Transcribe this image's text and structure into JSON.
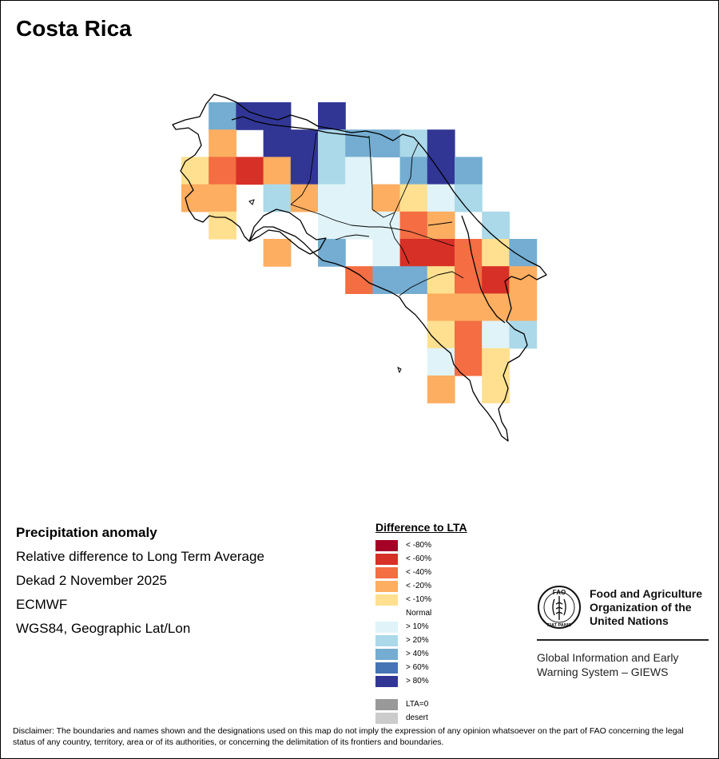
{
  "title": "Costa Rica",
  "info": {
    "heading": "Precipitation anomaly",
    "subtitle": "Relative difference to Long Term Average",
    "period": "Dekad 2 November 2025",
    "source": "ECMWF",
    "projection": "WGS84, Geographic Lat/Lon"
  },
  "legend": {
    "title": "Difference to LTA",
    "items": [
      {
        "label": "< -80%",
        "color": "#a50026"
      },
      {
        "label": "< -60%",
        "color": "#d73027"
      },
      {
        "label": "< -40%",
        "color": "#f46d43"
      },
      {
        "label": "< -20%",
        "color": "#fdae61"
      },
      {
        "label": "< -10%",
        "color": "#fee090"
      },
      {
        "label": "Normal",
        "color": "#ffffff"
      },
      {
        "label": "> 10%",
        "color": "#e0f3f8"
      },
      {
        "label": "> 20%",
        "color": "#abd9e9"
      },
      {
        "label": "> 40%",
        "color": "#74add1"
      },
      {
        "label": "> 60%",
        "color": "#4575b4"
      },
      {
        "label": "> 80%",
        "color": "#313695"
      }
    ],
    "extra": [
      {
        "label": "LTA=0",
        "color": "#999999"
      },
      {
        "label": "desert",
        "color": "#cccccc"
      }
    ]
  },
  "grid": {
    "categories": [
      "< -80%",
      "< -60%",
      "< -40%",
      "< -20%",
      "< -10%",
      "Normal",
      "> 10%",
      "> 20%",
      "> 40%",
      "> 60%",
      "> 80%"
    ],
    "cells": [
      {
        "row": 0,
        "col": 1,
        "class": 8
      },
      {
        "row": 0,
        "col": 2,
        "class": 10
      },
      {
        "row": 0,
        "col": 3,
        "class": 10
      },
      {
        "row": 0,
        "col": 5,
        "class": 10
      },
      {
        "row": 1,
        "col": 1,
        "class": 3
      },
      {
        "row": 1,
        "col": 3,
        "class": 10
      },
      {
        "row": 1,
        "col": 4,
        "class": 10
      },
      {
        "row": 1,
        "col": 5,
        "class": 7
      },
      {
        "row": 1,
        "col": 6,
        "class": 8
      },
      {
        "row": 1,
        "col": 7,
        "class": 8
      },
      {
        "row": 1,
        "col": 8,
        "class": 7
      },
      {
        "row": 1,
        "col": 9,
        "class": 10
      },
      {
        "row": 2,
        "col": 0,
        "class": 4
      },
      {
        "row": 2,
        "col": 1,
        "class": 2
      },
      {
        "row": 2,
        "col": 2,
        "class": 1
      },
      {
        "row": 2,
        "col": 3,
        "class": 3
      },
      {
        "row": 2,
        "col": 4,
        "class": 10
      },
      {
        "row": 2,
        "col": 5,
        "class": 7
      },
      {
        "row": 2,
        "col": 6,
        "class": 6
      },
      {
        "row": 2,
        "col": 8,
        "class": 8
      },
      {
        "row": 2,
        "col": 9,
        "class": 10
      },
      {
        "row": 2,
        "col": 10,
        "class": 8
      },
      {
        "row": 3,
        "col": 0,
        "class": 3
      },
      {
        "row": 3,
        "col": 1,
        "class": 3
      },
      {
        "row": 3,
        "col": 3,
        "class": 7
      },
      {
        "row": 3,
        "col": 4,
        "class": 3
      },
      {
        "row": 3,
        "col": 5,
        "class": 6
      },
      {
        "row": 3,
        "col": 6,
        "class": 6
      },
      {
        "row": 3,
        "col": 7,
        "class": 3
      },
      {
        "row": 3,
        "col": 8,
        "class": 4
      },
      {
        "row": 3,
        "col": 9,
        "class": 6
      },
      {
        "row": 3,
        "col": 10,
        "class": 7
      },
      {
        "row": 4,
        "col": 1,
        "class": 4
      },
      {
        "row": 4,
        "col": 5,
        "class": 6
      },
      {
        "row": 4,
        "col": 6,
        "class": 6
      },
      {
        "row": 4,
        "col": 7,
        "class": 6
      },
      {
        "row": 4,
        "col": 8,
        "class": 2
      },
      {
        "row": 4,
        "col": 9,
        "class": 3
      },
      {
        "row": 4,
        "col": 11,
        "class": 7
      },
      {
        "row": 5,
        "col": 3,
        "class": 3
      },
      {
        "row": 5,
        "col": 5,
        "class": 8
      },
      {
        "row": 5,
        "col": 7,
        "class": 6
      },
      {
        "row": 5,
        "col": 8,
        "class": 1
      },
      {
        "row": 5,
        "col": 9,
        "class": 1
      },
      {
        "row": 5,
        "col": 10,
        "class": 2
      },
      {
        "row": 5,
        "col": 11,
        "class": 4
      },
      {
        "row": 5,
        "col": 12,
        "class": 8
      },
      {
        "row": 6,
        "col": 6,
        "class": 2
      },
      {
        "row": 6,
        "col": 7,
        "class": 8
      },
      {
        "row": 6,
        "col": 8,
        "class": 8
      },
      {
        "row": 6,
        "col": 9,
        "class": 4
      },
      {
        "row": 6,
        "col": 10,
        "class": 2
      },
      {
        "row": 6,
        "col": 11,
        "class": 1
      },
      {
        "row": 6,
        "col": 12,
        "class": 3
      },
      {
        "row": 7,
        "col": 9,
        "class": 3
      },
      {
        "row": 7,
        "col": 10,
        "class": 3
      },
      {
        "row": 7,
        "col": 11,
        "class": 3
      },
      {
        "row": 7,
        "col": 12,
        "class": 3
      },
      {
        "row": 8,
        "col": 9,
        "class": 4
      },
      {
        "row": 8,
        "col": 10,
        "class": 2
      },
      {
        "row": 8,
        "col": 11,
        "class": 6
      },
      {
        "row": 8,
        "col": 12,
        "class": 7
      },
      {
        "row": 9,
        "col": 9,
        "class": 6
      },
      {
        "row": 9,
        "col": 10,
        "class": 2
      },
      {
        "row": 9,
        "col": 11,
        "class": 4
      },
      {
        "row": 10,
        "col": 9,
        "class": 3
      },
      {
        "row": 10,
        "col": 11,
        "class": 4
      }
    ]
  },
  "fao": {
    "line1": "Food and Agriculture",
    "line2": "Organization of the",
    "line3": "United Nations",
    "giews1": "Global Information and Early",
    "giews2": "Warning System – GIEWS",
    "logo_letters": "FAO",
    "motto": "FIAT PANIS"
  },
  "disclaimer": "Disclaimer: The boundaries and names shown and the designations used on this map do not imply the expression of any opinion whatsoever on the part of FAO concerning the legal status of any country, territory, area or of its authorities, or concerning the delimitation of its frontiers and boundaries."
}
